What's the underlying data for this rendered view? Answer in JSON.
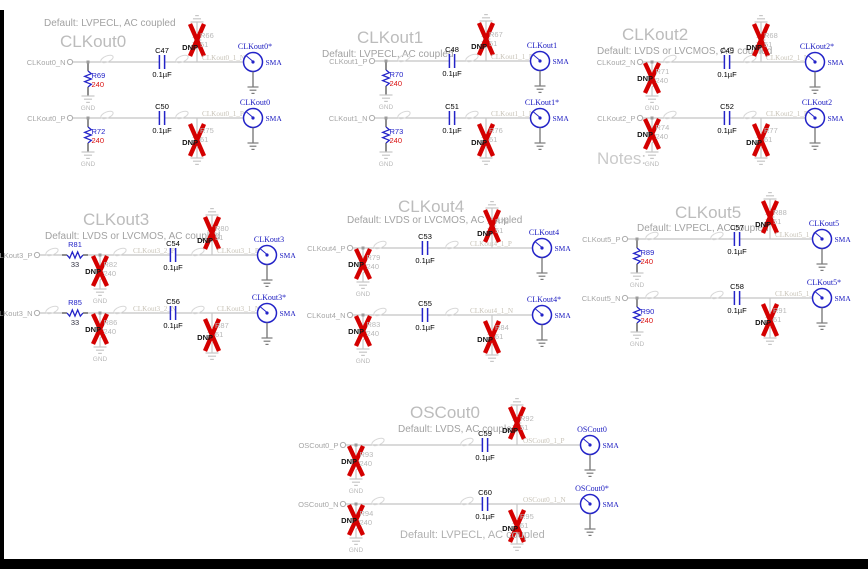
{
  "document": {
    "kind": "clock-output-schematic",
    "notes_label": "Notes:",
    "footnote": "Default: LVPECL, AC coupled"
  },
  "labels": {
    "dnp": "DNP",
    "gnd": "GND"
  },
  "colors": {
    "accent_blue": "#2323c8",
    "connector_blue": "#1a1ac0",
    "value_red": "#d91111",
    "dnp_x_red": "#d40000",
    "wire_gray": "#b6b6b6",
    "faded_gray": "#c6c6c6",
    "text_gray": "#a6a6a6",
    "title_gray": "#bcbcbc",
    "subtitle_gray": "#a2a2a2",
    "net_tan": "#c8c3b8",
    "dark": "#444444",
    "black": "#141414"
  },
  "blocks": [
    {
      "id": "clkout0",
      "title": "CLKout0",
      "subtitle": "Default: LVPECL, AC coupled",
      "rows": [
        {
          "port": "CLKout0_N",
          "series": null,
          "shunt": {
            "ref": "R69",
            "value": "240",
            "dnp": false
          },
          "mid_net": null,
          "cap": {
            "ref": "C47",
            "value": "0.1µF"
          },
          "term": {
            "ref": "R66",
            "value": "51",
            "dnp": true
          },
          "net": "CLKout0_1_N",
          "connector": {
            "label": "CLKout0*",
            "type": "SMA"
          }
        },
        {
          "port": "CLKout0_P",
          "series": null,
          "shunt": {
            "ref": "R72",
            "value": "240",
            "dnp": false
          },
          "mid_net": null,
          "cap": {
            "ref": "C50",
            "value": "0.1µF"
          },
          "term": {
            "ref": "R75",
            "value": "51",
            "dnp": true
          },
          "net": "CLKout0_1_P",
          "connector": {
            "label": "CLKout0",
            "type": "SMA"
          }
        }
      ]
    },
    {
      "id": "clkout1",
      "title": "CLKout1",
      "subtitle": "Default: LVPECL, AC coupled",
      "rows": [
        {
          "port": "CLKout1_P",
          "series": null,
          "shunt": {
            "ref": "R70",
            "value": "240",
            "dnp": false
          },
          "mid_net": null,
          "cap": {
            "ref": "C48",
            "value": "0.1µF"
          },
          "term": {
            "ref": "R67",
            "value": "51",
            "dnp": true
          },
          "net": "CLKout1_1_P",
          "connector": {
            "label": "CLKout1",
            "type": "SMA"
          }
        },
        {
          "port": "CLKout1_N",
          "series": null,
          "shunt": {
            "ref": "R73",
            "value": "240",
            "dnp": false
          },
          "mid_net": null,
          "cap": {
            "ref": "C51",
            "value": "0.1µF"
          },
          "term": {
            "ref": "R76",
            "value": "51",
            "dnp": true
          },
          "net": "CLKout1_1_N",
          "connector": {
            "label": "CLKout1*",
            "type": "SMA"
          }
        }
      ]
    },
    {
      "id": "clkout2",
      "title": "CLKout2",
      "subtitle": "Default: LVDS or LVCMOS, AC coupled",
      "rows": [
        {
          "port": "CLKout2_N",
          "series": null,
          "shunt": {
            "ref": "R71",
            "value": "240",
            "dnp": true
          },
          "mid_net": null,
          "cap": {
            "ref": "C49",
            "value": "0.1µF"
          },
          "term": {
            "ref": "R68",
            "value": "51",
            "dnp": true
          },
          "net": "CLKout2_1_N",
          "connector": {
            "label": "CLKout2*",
            "type": "SMA"
          }
        },
        {
          "port": "CLKout2_P",
          "series": null,
          "shunt": {
            "ref": "R74",
            "value": "240",
            "dnp": true
          },
          "mid_net": null,
          "cap": {
            "ref": "C52",
            "value": "0.1µF"
          },
          "term": {
            "ref": "R77",
            "value": "51",
            "dnp": true
          },
          "net": "CLKout2_1_P",
          "connector": {
            "label": "CLKout2",
            "type": "SMA"
          }
        }
      ]
    },
    {
      "id": "clkout3",
      "title": "CLKout3",
      "subtitle": "Default: LVDS or LVCMOS, AC coupled",
      "rows": [
        {
          "port": "CLKout3_P",
          "series": {
            "ref": "R81",
            "value": "33"
          },
          "shunt": {
            "ref": "R82",
            "value": "240",
            "dnp": true
          },
          "mid_net": "CLKout3_2_P",
          "cap": {
            "ref": "C54",
            "value": "0.1µF"
          },
          "term": {
            "ref": "R80",
            "value": "51",
            "dnp": true
          },
          "net": "CLKout3_1_P",
          "connector": {
            "label": "CLKout3",
            "type": "SMA"
          }
        },
        {
          "port": "CLKout3_N",
          "series": {
            "ref": "R85",
            "value": "33"
          },
          "shunt": {
            "ref": "R86",
            "value": "240",
            "dnp": true
          },
          "mid_net": "CLKout3_2_N",
          "cap": {
            "ref": "C56",
            "value": "0.1µF"
          },
          "term": {
            "ref": "R87",
            "value": "51",
            "dnp": true
          },
          "net": "CLKout3_1_N",
          "connector": {
            "label": "CLKout3*",
            "type": "SMA"
          }
        }
      ]
    },
    {
      "id": "clkout4",
      "title": "CLKout4",
      "subtitle": "Default: LVDS or LVCMOS, AC coupled",
      "rows": [
        {
          "port": "CLKout4_P",
          "series": null,
          "shunt": {
            "ref": "R79",
            "value": "240",
            "dnp": true
          },
          "mid_net": null,
          "cap": {
            "ref": "C53",
            "value": "0.1µF"
          },
          "term": {
            "ref": "R78",
            "value": "51",
            "dnp": true
          },
          "net": "CLKout4_1_P",
          "connector": {
            "label": "CLKout4",
            "type": "SMA"
          }
        },
        {
          "port": "CLKout4_N",
          "series": null,
          "shunt": {
            "ref": "R83",
            "value": "240",
            "dnp": true
          },
          "mid_net": null,
          "cap": {
            "ref": "C55",
            "value": "0.1µF"
          },
          "term": {
            "ref": "R84",
            "value": "51",
            "dnp": true
          },
          "net": "CLKout4_1_N",
          "connector": {
            "label": "CLKout4*",
            "type": "SMA"
          }
        }
      ]
    },
    {
      "id": "clkout5",
      "title": "CLKout5",
      "subtitle": "Default: LVPECL, AC coupled",
      "rows": [
        {
          "port": "CLKout5_P",
          "series": null,
          "shunt": {
            "ref": "R89",
            "value": "240",
            "dnp": false
          },
          "mid_net": null,
          "cap": {
            "ref": "C57",
            "value": "0.1µF"
          },
          "term": {
            "ref": "R88",
            "value": "51",
            "dnp": true
          },
          "net": "CLKout5_1_P",
          "connector": {
            "label": "CLKout5",
            "type": "SMA"
          }
        },
        {
          "port": "CLKout5_N",
          "series": null,
          "shunt": {
            "ref": "R90",
            "value": "240",
            "dnp": false
          },
          "mid_net": null,
          "cap": {
            "ref": "C58",
            "value": "0.1µF"
          },
          "term": {
            "ref": "R91",
            "value": "51",
            "dnp": true
          },
          "net": "CLKout5_1_N",
          "connector": {
            "label": "CLKout5*",
            "type": "SMA"
          }
        }
      ]
    },
    {
      "id": "oscout0",
      "title": "OSCout0",
      "subtitle": "Default: LVDS, AC coupled",
      "rows": [
        {
          "port": "OSCout0_P",
          "series": null,
          "shunt": {
            "ref": "R93",
            "value": "240",
            "dnp": true
          },
          "mid_net": null,
          "cap": {
            "ref": "C59",
            "value": "0.1µF"
          },
          "term": {
            "ref": "R92",
            "value": "51",
            "dnp": true
          },
          "net": "OSCout0_1_P",
          "connector": {
            "label": "OSCout0",
            "type": "SMA"
          }
        },
        {
          "port": "OSCout0_N",
          "series": null,
          "shunt": {
            "ref": "R94",
            "value": "240",
            "dnp": true
          },
          "mid_net": null,
          "cap": {
            "ref": "C60",
            "value": "0.1µF"
          },
          "term": {
            "ref": "R95",
            "value": "51",
            "dnp": true
          },
          "net": "OSCout0_1_N",
          "connector": {
            "label": "OSCout0*",
            "type": "SMA"
          }
        }
      ]
    }
  ]
}
